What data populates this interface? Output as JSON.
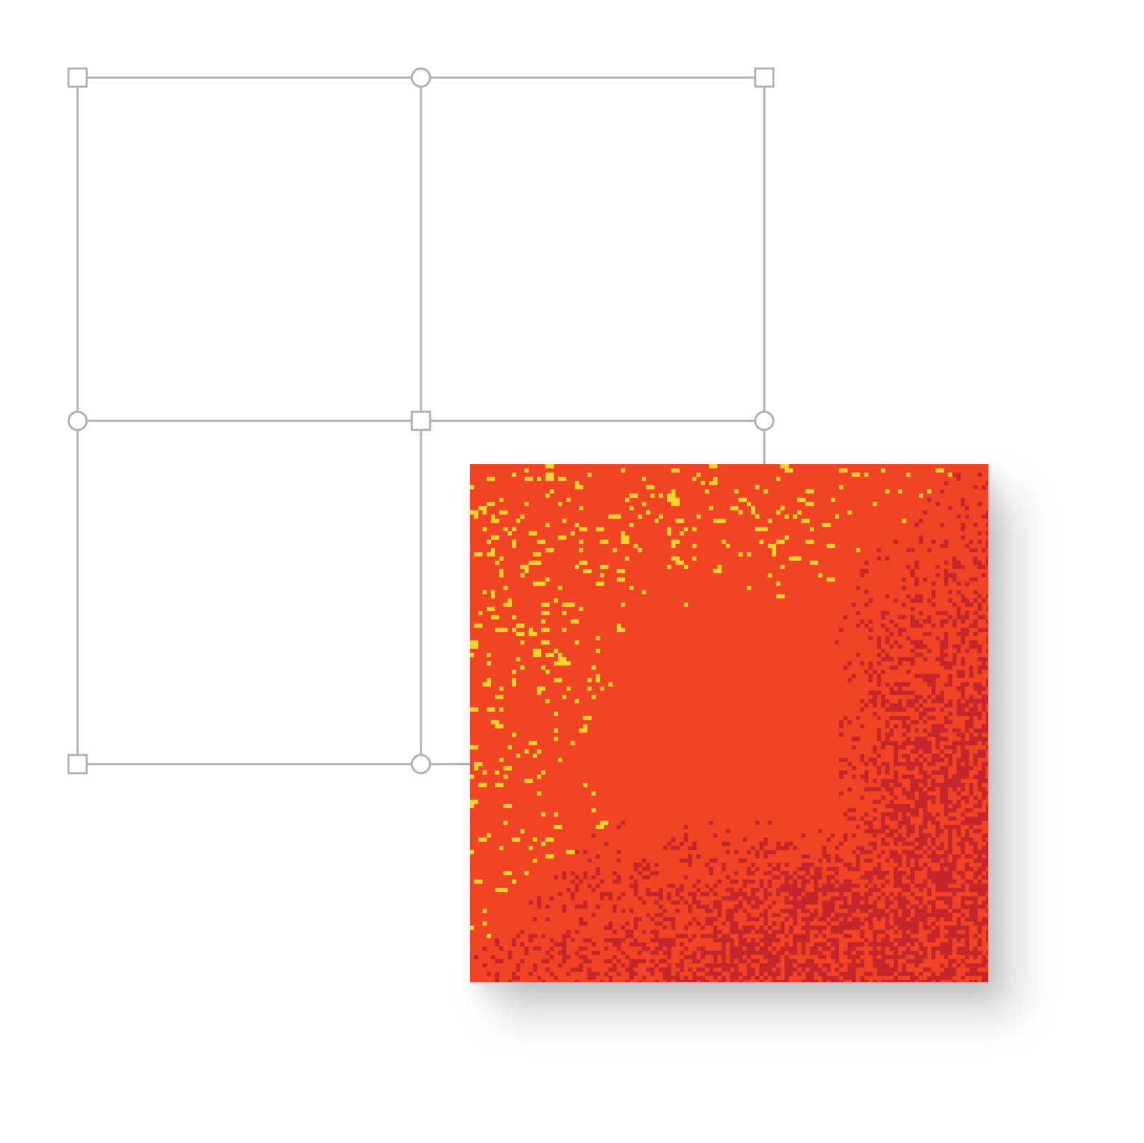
{
  "colors": {
    "background": "#FFFFFF",
    "grid_line": "#B0B0B0",
    "handle_fill": "#FFFFFF",
    "handle_stroke": "#B0B0B0",
    "pattern_base": "#F04425",
    "pattern_speckle_light": "#F5D52A",
    "pattern_speckle_dark": "#C4262B",
    "card_shadow": "rgba(0,0,0,0.18)"
  },
  "guide_grid": {
    "columns": 2,
    "rows": 2,
    "corner_handle_shape": "square",
    "edge_handle_shape": "circle",
    "center_handle_shape": "square"
  },
  "pattern": {
    "style": "pixel-noise",
    "light_speckles_region": "top-left",
    "dark_speckles_region": "bottom-right",
    "clear_region": "center"
  }
}
